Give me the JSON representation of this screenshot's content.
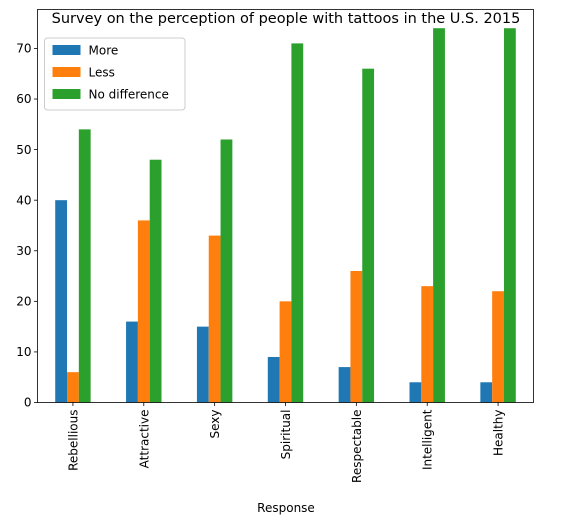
{
  "chart_data": {
    "type": "bar",
    "title": "Survey on the perception of people with tattoos in the U.S. 2015",
    "xlabel": "Response",
    "ylabel": "",
    "categories": [
      "Rebellious",
      "Attractive",
      "Sexy",
      "Spiritual",
      "Respectable",
      "Intelligent",
      "Healthy"
    ],
    "series": [
      {
        "name": "More",
        "color": "#1f77b4",
        "values": [
          40,
          16,
          15,
          9,
          7,
          4,
          4
        ]
      },
      {
        "name": "Less",
        "color": "#ff7f0e",
        "values": [
          6,
          36,
          33,
          20,
          26,
          23,
          22
        ]
      },
      {
        "name": "No difference",
        "color": "#2ca02c",
        "values": [
          54,
          48,
          52,
          71,
          66,
          74,
          74
        ]
      }
    ],
    "yticks": [
      0,
      10,
      20,
      30,
      40,
      50,
      60,
      70
    ],
    "ylim": [
      0,
      77.7
    ],
    "grid": false,
    "legend_position": "top-left"
  }
}
